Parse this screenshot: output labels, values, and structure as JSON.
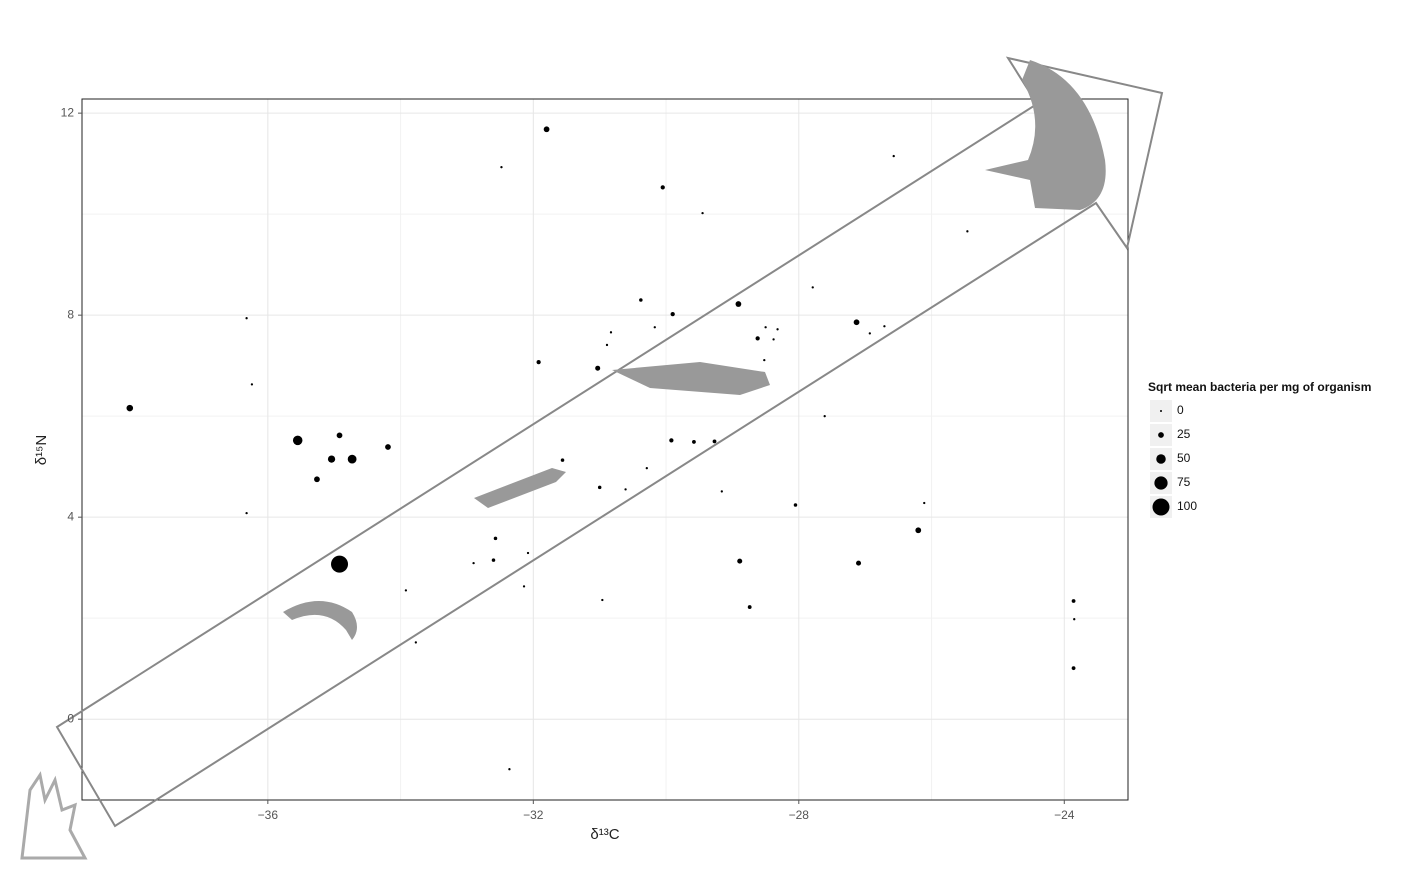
{
  "chart_data": {
    "type": "scatter",
    "x_label": "δ¹³C",
    "y_label": "δ¹⁵N",
    "x": [
      -31.8,
      -32.48,
      -30.05,
      -29.45,
      -26.57,
      -25.46,
      -36.32,
      -36.24,
      -38.08,
      -35.55,
      -34.92,
      -34.19,
      -35.04,
      -34.73,
      -35.26,
      -36.32,
      -34.92,
      -33.92,
      -33.77,
      -32.36,
      -31.92,
      -31.03,
      -31.56,
      -31.0,
      -30.61,
      -30.29,
      -30.83,
      -30.89,
      -30.17,
      -30.38,
      -29.9,
      -29.92,
      -29.58,
      -29.27,
      -29.16,
      -28.91,
      -28.62,
      -28.5,
      -28.32,
      -28.38,
      -28.52,
      -27.79,
      -27.61,
      -28.05,
      -27.13,
      -26.93,
      -26.71,
      -26.2,
      -26.11,
      -27.1,
      -28.89,
      -28.74,
      -30.96,
      -32.57,
      -32.6,
      -32.08,
      -32.9,
      -32.14,
      -23.86,
      -23.85,
      -23.86
    ],
    "values": [
      11.68,
      10.93,
      10.53,
      10.02,
      11.15,
      9.66,
      7.94,
      6.63,
      6.16,
      5.52,
      5.62,
      5.39,
      5.15,
      5.15,
      4.75,
      4.08,
      3.07,
      2.55,
      1.52,
      -0.99,
      7.07,
      6.95,
      5.13,
      4.59,
      4.55,
      4.97,
      7.66,
      7.41,
      7.76,
      8.3,
      8.02,
      5.52,
      5.49,
      5.5,
      4.51,
      8.22,
      7.54,
      7.76,
      7.72,
      7.52,
      7.11,
      8.55,
      6.0,
      4.24,
      7.86,
      7.64,
      7.78,
      3.74,
      4.28,
      3.09,
      3.13,
      2.22,
      2.36,
      3.58,
      3.15,
      3.29,
      3.09,
      2.63,
      2.34,
      1.98,
      1.01
    ],
    "sizes": [
      25,
      2,
      15,
      2,
      2,
      2,
      2,
      2,
      30,
      50,
      25,
      25,
      35,
      45,
      25,
      2,
      100,
      2,
      2,
      2,
      15,
      20,
      10,
      10,
      2,
      2,
      2,
      2,
      2,
      10,
      15,
      15,
      12,
      12,
      2,
      25,
      15,
      2,
      2,
      2,
      2,
      2,
      2,
      10,
      25,
      2,
      2,
      25,
      2,
      20,
      20,
      12,
      2,
      10,
      10,
      2,
      2,
      2,
      12,
      2,
      12
    ],
    "color": "#000000",
    "xlim": [
      -38.8,
      -23.04
    ],
    "ylim": [
      -1.6,
      12.28
    ],
    "xticks": [
      {
        "value": -36,
        "label": "−36"
      },
      {
        "value": -32,
        "label": "−32"
      },
      {
        "value": -28,
        "label": "−28"
      },
      {
        "value": -24,
        "label": "−24"
      }
    ],
    "yticks": [
      0,
      4,
      8,
      12
    ],
    "x_minor_ticks": [
      -34,
      -30,
      -26
    ],
    "y_minor_ticks": [
      2,
      6,
      10
    ],
    "grid": true,
    "size_legend": {
      "title": "Sqrt mean bacteria per mg of organism",
      "values": [
        0,
        25,
        50,
        75,
        100
      ]
    }
  }
}
